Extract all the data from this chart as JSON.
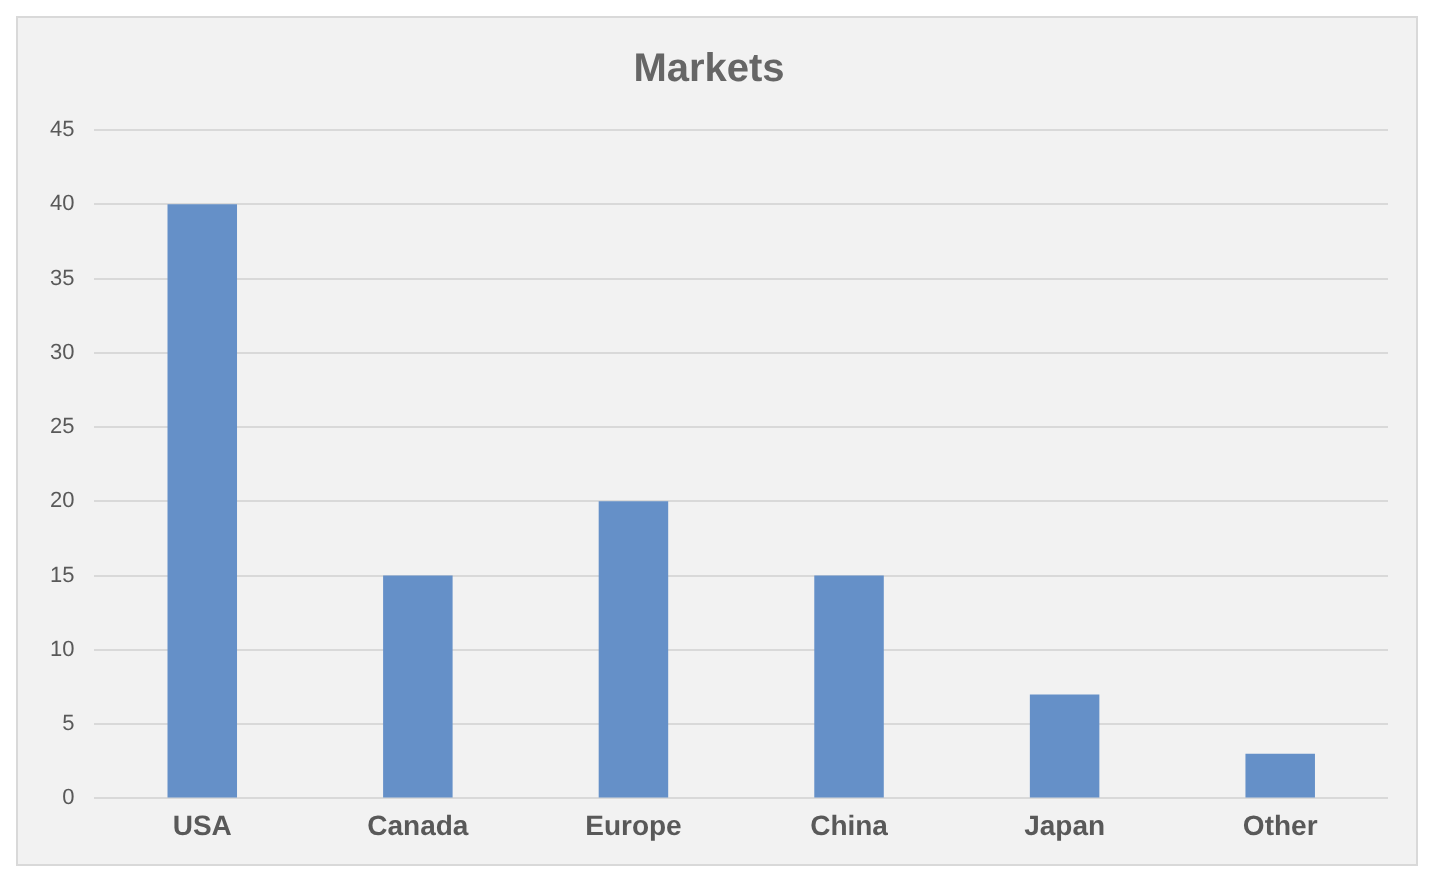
{
  "chart_data": {
    "type": "bar",
    "title": "Markets",
    "categories": [
      "USA",
      "Canada",
      "Europe",
      "China",
      "Japan",
      "Other"
    ],
    "values": [
      40,
      15,
      20,
      15,
      7,
      3
    ],
    "color": "#6590c8",
    "ylim": [
      0,
      45
    ],
    "yticks": [
      0,
      5,
      10,
      15,
      20,
      25,
      30,
      35,
      40,
      45
    ],
    "grid": "y",
    "legend": false
  }
}
